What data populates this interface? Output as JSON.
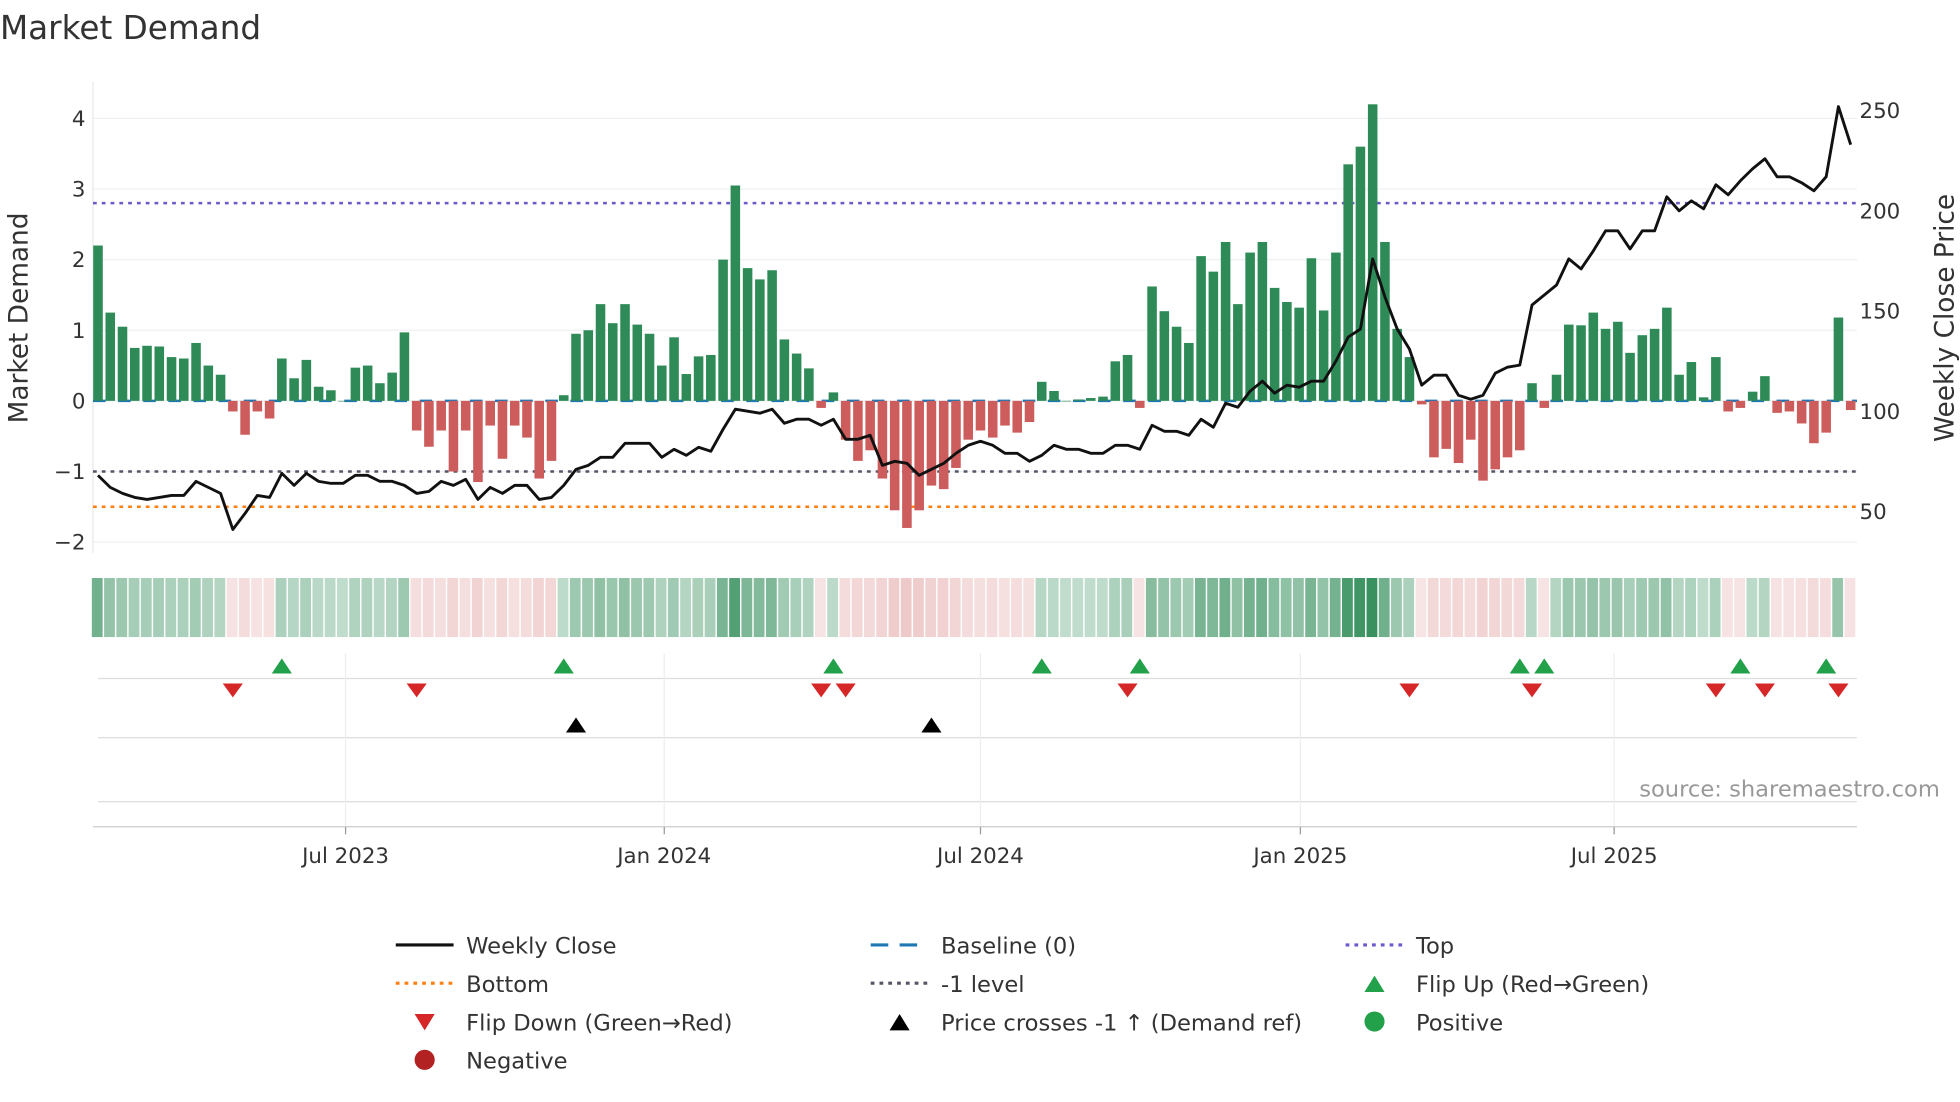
{
  "chart_data": {
    "type": "bar",
    "title": "Market Demand",
    "ylabel": "Market Demand",
    "y2label": "Weekly Close Price",
    "ylim": [
      -2.2,
      4.4
    ],
    "y2lim": [
      36,
      260
    ],
    "yticks": [
      "4",
      "3",
      "2",
      "1",
      "0",
      "−1",
      "−2"
    ],
    "ytick_values": [
      4,
      3,
      2,
      1,
      0,
      -1,
      -2
    ],
    "y2ticks": [
      "250",
      "200",
      "150",
      "100",
      "50"
    ],
    "y2tick_values": [
      250,
      200,
      150,
      100,
      50
    ],
    "xticks": [
      "Jul 2023",
      "Jan 2024",
      "Jul 2024",
      "Jan 2025",
      "Jul 2025"
    ],
    "xtick_week_index": [
      20.2,
      46.2,
      72.0,
      98.1,
      123.7
    ],
    "grid": true,
    "levels": {
      "top": 2.8,
      "baseline": 0,
      "minus_one": -1,
      "bottom": -1.5
    },
    "colors": {
      "positive": "#2e8b57",
      "negative": "#cd5c5c",
      "price": "#111111",
      "baseline": "#1f77b4",
      "top": "#6a5acd",
      "minus_one": "#555566",
      "bottom": "#ff7f0e",
      "flip_up": "#22a04a",
      "flip_down": "#d62728",
      "cross": "#000000",
      "negative_dot": "#b22222"
    },
    "demand": [
      2.2,
      1.25,
      1.05,
      0.75,
      0.78,
      0.77,
      0.62,
      0.6,
      0.82,
      0.5,
      0.37,
      -0.15,
      -0.48,
      -0.15,
      -0.25,
      0.6,
      0.32,
      0.58,
      0.2,
      0.15,
      0,
      0.47,
      0.5,
      0.25,
      0.4,
      0.97,
      -0.42,
      -0.65,
      -0.42,
      -1.0,
      -0.42,
      -1.15,
      -0.35,
      -0.82,
      -0.35,
      -0.52,
      -1.1,
      -0.85,
      0.08,
      0.95,
      1.0,
      1.37,
      1.1,
      1.37,
      1.08,
      0.95,
      0.5,
      0.9,
      0.38,
      0.63,
      0.65,
      2.0,
      3.05,
      1.88,
      1.72,
      1.85,
      0.87,
      0.67,
      0.46,
      -0.1,
      0.12,
      -0.55,
      -0.85,
      -0.7,
      -1.1,
      -1.55,
      -1.8,
      -1.55,
      -1.2,
      -1.25,
      -0.95,
      -0.55,
      -0.42,
      -0.52,
      -0.35,
      -0.45,
      -0.3,
      0.27,
      0.14,
      0,
      0.02,
      0.04,
      0.06,
      0.56,
      0.65,
      -0.1,
      1.62,
      1.27,
      1.05,
      0.82,
      2.05,
      1.83,
      2.25,
      1.37,
      2.1,
      2.25,
      1.6,
      1.4,
      1.32,
      2.02,
      1.28,
      2.1,
      3.35,
      3.6,
      4.2,
      2.25,
      1.02,
      0.62,
      -0.05,
      -0.8,
      -0.68,
      -0.88,
      -0.55,
      -1.13,
      -0.97,
      -0.8,
      -0.7,
      0.25,
      -0.1,
      0.37,
      1.08,
      1.07,
      1.25,
      1.02,
      1.12,
      0.68,
      0.93,
      1.02,
      1.32,
      0.37,
      0.55,
      0.05,
      0.62,
      -0.15,
      -0.1,
      0.13,
      0.35,
      -0.17,
      -0.15,
      -0.32,
      -0.6,
      -0.45,
      1.18,
      -0.13
    ],
    "price": [
      68,
      62,
      59,
      57,
      56,
      57,
      58,
      58,
      65,
      62,
      59,
      41,
      49,
      58,
      57,
      69,
      63,
      69,
      65,
      64,
      64,
      68,
      68,
      65,
      65,
      63,
      59,
      60,
      65,
      63,
      66,
      56,
      62,
      59,
      63,
      63,
      56,
      57,
      63,
      71,
      73,
      77,
      77,
      84,
      84,
      84,
      77,
      81,
      78,
      82,
      80,
      91,
      101,
      100,
      99,
      101,
      94,
      96,
      96,
      93,
      96,
      86,
      86,
      88,
      73,
      75,
      74,
      68,
      71,
      74,
      79,
      83,
      85,
      83,
      79,
      79,
      75,
      78,
      83,
      81,
      81,
      79,
      79,
      83,
      83,
      81,
      93,
      90,
      90,
      88,
      96,
      92,
      104,
      102,
      110,
      115,
      109,
      113,
      112,
      115,
      115,
      125,
      137,
      141,
      176,
      157,
      141,
      131,
      113,
      118,
      118,
      108,
      106,
      108,
      119,
      122,
      123,
      153,
      158,
      163,
      176,
      171,
      180,
      190,
      190,
      181,
      190,
      190,
      207,
      200,
      205,
      201,
      213,
      208,
      215,
      221,
      226,
      217,
      217,
      214,
      210,
      217,
      252,
      233
    ],
    "flip_up_index": [
      15,
      38,
      60,
      77,
      85,
      116,
      118,
      134,
      141
    ],
    "flip_down_index": [
      11,
      26,
      59,
      61,
      84,
      107,
      117,
      132,
      136,
      142
    ],
    "price_cross_index": [
      39,
      68
    ],
    "legend_placement": "bottom",
    "legend": [
      {
        "label": "Weekly Close",
        "kind": "line-solid",
        "color": "#111111"
      },
      {
        "label": "Baseline (0)",
        "kind": "line-dash",
        "color": "#1f77b4"
      },
      {
        "label": "Top",
        "kind": "line-dot",
        "color": "#6a5acd"
      },
      {
        "label": "Bottom",
        "kind": "line-dot",
        "color": "#ff7f0e"
      },
      {
        "label": "-1 level",
        "kind": "line-dot",
        "color": "#555566"
      },
      {
        "label": "Flip Up (Red→Green)",
        "kind": "tri-up",
        "color": "#22a04a"
      },
      {
        "label": "Flip Down (Green→Red)",
        "kind": "tri-down",
        "color": "#d62728"
      },
      {
        "label": "Price crosses -1 ↑ (Demand ref)",
        "kind": "tri-up",
        "color": "#000000"
      },
      {
        "label": "Positive",
        "kind": "dot",
        "color": "#22a04a"
      },
      {
        "label": "Negative",
        "kind": "dot",
        "color": "#b22222"
      }
    ],
    "source": "source: sharemaestro.com"
  }
}
